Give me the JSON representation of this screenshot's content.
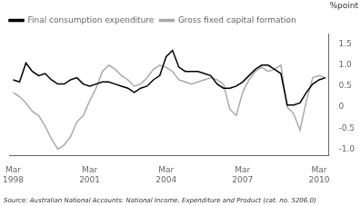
{
  "chart_data": {
    "type": "line",
    "y_label": "%point",
    "annotations": [
      "Source: Australian National Accounts: National Income, Expenditure and Product (cat. no. 5206.0)"
    ],
    "categories": [
      "Mar\n1998",
      null,
      null,
      null,
      null,
      null,
      null,
      null,
      null,
      null,
      null,
      null,
      "Mar\n2001",
      null,
      null,
      null,
      null,
      null,
      null,
      null,
      null,
      null,
      null,
      null,
      "Mar\n2004",
      null,
      null,
      null,
      null,
      null,
      null,
      null,
      null,
      null,
      null,
      null,
      "Mar\n2007",
      null,
      null,
      null,
      null,
      null,
      null,
      null,
      null,
      null,
      null,
      null,
      "Mar\n2010",
      null
    ],
    "series": [
      {
        "name": "Final consumption expenditure",
        "color": "#000000",
        "values": [
          0.65,
          0.6,
          1.05,
          0.85,
          0.75,
          0.8,
          0.65,
          0.55,
          0.55,
          0.65,
          0.7,
          0.55,
          0.5,
          0.55,
          0.6,
          0.6,
          0.55,
          0.5,
          0.45,
          0.35,
          0.45,
          0.5,
          0.65,
          0.75,
          1.2,
          1.35,
          0.95,
          0.85,
          0.85,
          0.85,
          0.8,
          0.75,
          0.55,
          0.45,
          0.45,
          0.5,
          0.6,
          0.75,
          0.9,
          1.0,
          1.0,
          0.9,
          0.8,
          0.05,
          0.05,
          0.1,
          0.35,
          0.55,
          0.65,
          0.7
        ]
      },
      {
        "name": "Gross fixed capital formation",
        "color": "#aaaaaa",
        "values": [
          0.35,
          0.25,
          0.1,
          -0.1,
          -0.2,
          -0.45,
          -0.75,
          -1.0,
          -0.9,
          -0.7,
          -0.35,
          -0.2,
          0.15,
          0.45,
          0.85,
          1.0,
          0.9,
          0.75,
          0.65,
          0.5,
          0.55,
          0.7,
          0.9,
          1.0,
          0.95,
          0.85,
          0.65,
          0.6,
          0.55,
          0.6,
          0.65,
          0.7,
          0.65,
          0.55,
          -0.05,
          -0.2,
          0.35,
          0.65,
          0.85,
          0.95,
          0.85,
          0.9,
          1.0,
          0.0,
          -0.15,
          -0.55,
          0.15,
          0.7,
          0.75,
          0.7
        ]
      }
    ],
    "ylim": [
      -1.15,
      1.75
    ],
    "yticks": [
      {
        "value": -1.0,
        "label": "-1.0"
      },
      {
        "value": -0.5,
        "label": "-0.5"
      },
      0,
      0.5,
      {
        "value": 1.0,
        "label": "1.0"
      },
      1.5
    ],
    "grid": false,
    "legend": "upper left"
  }
}
